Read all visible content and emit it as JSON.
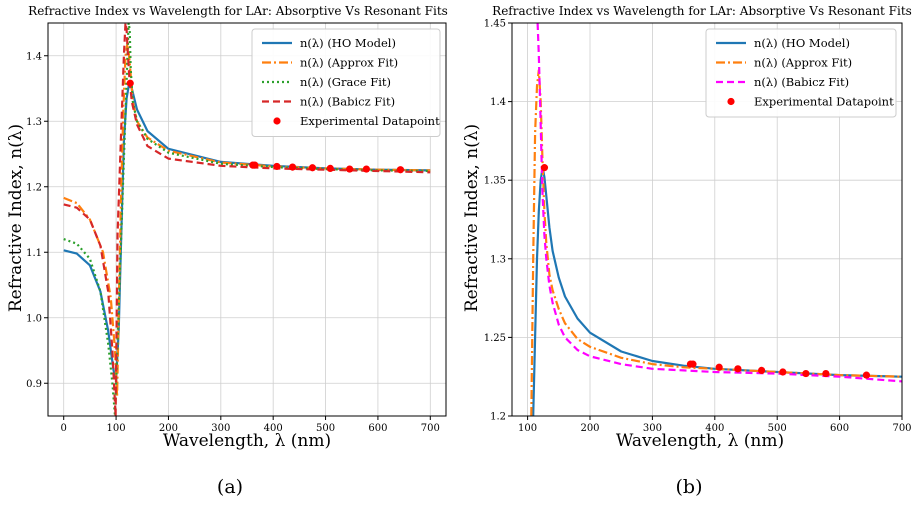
{
  "chart_data": [
    {
      "type": "line",
      "title": "Refractive Index vs Wavelength for LAr: Absorptive Vs Resonant Fits",
      "xlabel": "Wavelength, λ (nm)",
      "ylabel": "Refractive Index, n(λ)",
      "xlim": [
        -30,
        730
      ],
      "ylim": [
        0.85,
        1.45
      ],
      "x_ticks": [
        0,
        100,
        200,
        300,
        400,
        500,
        600,
        700
      ],
      "y_ticks": [
        0.9,
        1.0,
        1.1,
        1.2,
        1.3,
        1.4
      ],
      "grid": true,
      "legend_position": "top-right",
      "panel_label": "(a)",
      "series": [
        {
          "name": "n(λ) (HO Model)",
          "color": "#1f77b4",
          "style": "solid",
          "x": [
            0,
            25,
            50,
            70,
            85,
            95,
            100,
            105,
            110,
            115,
            120,
            125,
            130,
            140,
            160,
            200,
            300,
            400,
            500,
            600,
            700
          ],
          "y": [
            1.103,
            1.098,
            1.08,
            1.04,
            0.98,
            0.92,
            0.905,
            0.98,
            1.13,
            1.27,
            1.335,
            1.358,
            1.35,
            1.318,
            1.285,
            1.258,
            1.238,
            1.232,
            1.228,
            1.226,
            1.225
          ]
        },
        {
          "name": "n(λ) (Approx Fit)",
          "color": "#ff7f0e",
          "style": "dashdot",
          "x": [
            0,
            25,
            50,
            75,
            90,
            98,
            102,
            106,
            110,
            114,
            118,
            122,
            126,
            132,
            140,
            160,
            200,
            300,
            400,
            500,
            600,
            700
          ],
          "y": [
            1.183,
            1.175,
            1.15,
            1.1,
            1.03,
            0.95,
            0.88,
            1.05,
            1.2,
            1.32,
            1.4,
            1.42,
            1.39,
            1.33,
            1.3,
            1.275,
            1.255,
            1.237,
            1.231,
            1.228,
            1.226,
            1.225
          ]
        },
        {
          "name": "n(λ) (Grace Fit)",
          "color": "#2ca02c",
          "style": "dotted",
          "x": [
            0,
            25,
            50,
            70,
            85,
            93,
            98,
            124,
            126,
            128,
            132,
            140,
            160,
            200,
            300,
            400,
            500,
            600,
            700
          ],
          "y": [
            1.12,
            1.113,
            1.09,
            1.04,
            0.96,
            0.9,
            0.85,
            1.45,
            1.44,
            1.38,
            1.33,
            1.3,
            1.273,
            1.252,
            1.235,
            1.23,
            1.227,
            1.225,
            1.224
          ]
        },
        {
          "name": "n(λ) (Babicz Fit)",
          "color": "#d62728",
          "style": "dashed",
          "x": [
            0,
            25,
            50,
            70,
            85,
            93,
            99,
            103,
            110,
            115,
            118,
            120,
            122,
            125,
            130,
            140,
            160,
            200,
            300,
            400,
            500,
            600,
            700
          ],
          "y": [
            1.173,
            1.168,
            1.15,
            1.11,
            1.04,
            0.95,
            0.85,
            1.13,
            1.29,
            1.4,
            1.45,
            1.44,
            1.41,
            1.37,
            1.33,
            1.295,
            1.262,
            1.243,
            1.232,
            1.228,
            1.226,
            1.224,
            1.222
          ]
        }
      ],
      "scatter": {
        "name": "Experimental Datapoint",
        "color": "#ff0000",
        "x": [
          127,
          361,
          365,
          407,
          437,
          475,
          509,
          546,
          578,
          643
        ],
        "y": [
          1.358,
          1.233,
          1.233,
          1.231,
          1.23,
          1.229,
          1.228,
          1.227,
          1.227,
          1.226
        ]
      }
    },
    {
      "type": "line",
      "title": "Refractive Index vs Wavelength for LAr: Absorptive Vs Resonant Fits",
      "xlabel": "Wavelength, λ (nm)",
      "ylabel": "Refractive Index, n(λ)",
      "xlim": [
        75,
        700
      ],
      "ylim": [
        1.2,
        1.45
      ],
      "x_ticks": [
        100,
        200,
        300,
        400,
        500,
        600,
        700
      ],
      "y_ticks": [
        1.2,
        1.25,
        1.3,
        1.35,
        1.4,
        1.45
      ],
      "grid": true,
      "legend_position": "top-right",
      "panel_label": "(b)",
      "series": [
        {
          "name": "n(λ) (HO Model)",
          "color": "#1f77b4",
          "style": "solid",
          "x": [
            109,
            112,
            115,
            118,
            121,
            124,
            127,
            130,
            135,
            140,
            150,
            160,
            180,
            200,
            250,
            300,
            350,
            400,
            500,
            600,
            700
          ],
          "y": [
            1.2,
            1.25,
            1.3,
            1.33,
            1.35,
            1.358,
            1.352,
            1.34,
            1.32,
            1.305,
            1.288,
            1.276,
            1.262,
            1.253,
            1.241,
            1.235,
            1.232,
            1.23,
            1.228,
            1.226,
            1.225
          ]
        },
        {
          "name": "n(λ) (Approx Fit)",
          "color": "#ff7f0e",
          "style": "dashdot",
          "x": [
            106,
            109,
            112,
            115,
            118,
            121,
            124,
            127,
            130,
            135,
            140,
            150,
            160,
            180,
            200,
            250,
            300,
            350,
            400,
            500,
            600,
            700
          ],
          "y": [
            1.2,
            1.3,
            1.38,
            1.41,
            1.42,
            1.4,
            1.36,
            1.33,
            1.31,
            1.29,
            1.28,
            1.268,
            1.259,
            1.249,
            1.244,
            1.237,
            1.233,
            1.231,
            1.23,
            1.228,
            1.226,
            1.225
          ]
        },
        {
          "name": "n(λ) (Babicz Fit)",
          "color": "#ff00ff",
          "style": "dashed",
          "x": [
            116,
            118,
            120,
            122,
            124,
            127,
            130,
            135,
            140,
            150,
            160,
            180,
            200,
            250,
            300,
            350,
            400,
            500,
            600,
            700
          ],
          "y": [
            1.45,
            1.43,
            1.4,
            1.37,
            1.34,
            1.315,
            1.3,
            1.283,
            1.272,
            1.258,
            1.25,
            1.242,
            1.238,
            1.233,
            1.23,
            1.229,
            1.228,
            1.227,
            1.225,
            1.222
          ]
        }
      ],
      "scatter": {
        "name": "Experimental Datapoint",
        "color": "#ff0000",
        "x": [
          127,
          361,
          365,
          407,
          437,
          475,
          509,
          546,
          578,
          643
        ],
        "y": [
          1.358,
          1.233,
          1.233,
          1.231,
          1.23,
          1.229,
          1.228,
          1.227,
          1.227,
          1.226
        ]
      }
    }
  ],
  "caption_fragments": [
    "(a)",
    "(b)"
  ],
  "fonts_note": ""
}
